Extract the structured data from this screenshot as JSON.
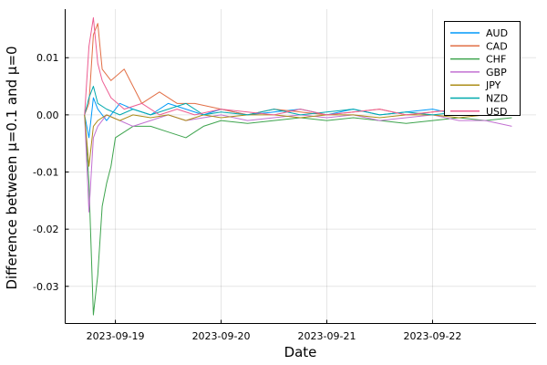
{
  "chart_data": {
    "type": "line",
    "title": "",
    "xlabel": "Date",
    "ylabel": "Difference between μ=0.1 and μ=0",
    "x_axis_type": "datetime",
    "xlim": [
      "2023-09-18T12:36:00",
      "2023-09-22T23:30:00"
    ],
    "ylim": [
      -0.0365,
      0.0185
    ],
    "x_ticks": [
      "2023-09-19",
      "2023-09-20",
      "2023-09-21",
      "2023-09-22"
    ],
    "y_ticks": [
      0.01,
      0.0,
      -0.01,
      -0.02,
      -0.03
    ],
    "y_tick_labels": [
      "0.01",
      "0.00",
      "-0.01",
      "-0.02",
      "-0.03"
    ],
    "grid": true,
    "legend_position": "top-right",
    "series": [
      {
        "name": "AUD",
        "color": "#009AFA",
        "x": [
          "2023-09-18T17:00",
          "2023-09-18T18:00",
          "2023-09-18T19:00",
          "2023-09-18T20:00",
          "2023-09-18T22:00",
          "2023-09-19T01:00",
          "2023-09-19T04:00",
          "2023-09-19T08:00",
          "2023-09-19T12:00",
          "2023-09-19T16:00",
          "2023-09-19T20:00",
          "2023-09-20T00:00",
          "2023-09-20T06:00",
          "2023-09-20T12:00",
          "2023-09-20T18:00",
          "2023-09-21T00:00",
          "2023-09-21T06:00",
          "2023-09-21T12:00",
          "2023-09-21T18:00",
          "2023-09-22T00:00",
          "2023-09-22T06:00",
          "2023-09-22T12:00",
          "2023-09-22T18:00"
        ],
        "y": [
          0.0,
          -0.004,
          0.003,
          0.001,
          -0.001,
          0.002,
          0.001,
          0.0,
          0.002,
          0.001,
          0.0,
          0.001,
          0.0,
          0.0005,
          0.001,
          0.0,
          0.001,
          0.0,
          0.0005,
          0.001,
          0.0,
          0.0005,
          0.0
        ]
      },
      {
        "name": "CAD",
        "color": "#E26F46",
        "x": [
          "2023-09-18T17:00",
          "2023-09-18T18:00",
          "2023-09-18T19:00",
          "2023-09-18T20:00",
          "2023-09-18T21:00",
          "2023-09-18T23:00",
          "2023-09-19T02:00",
          "2023-09-19T06:00",
          "2023-09-19T10:00",
          "2023-09-19T14:00",
          "2023-09-19T18:00",
          "2023-09-20T00:00",
          "2023-09-20T06:00",
          "2023-09-20T12:00",
          "2023-09-20T18:00",
          "2023-09-21T00:00",
          "2023-09-21T06:00",
          "2023-09-21T12:00",
          "2023-09-21T18:00",
          "2023-09-22T00:00",
          "2023-09-22T06:00",
          "2023-09-22T12:00",
          "2023-09-22T18:00"
        ],
        "y": [
          0.0,
          0.002,
          0.014,
          0.016,
          0.008,
          0.006,
          0.008,
          0.002,
          0.004,
          0.002,
          0.002,
          0.001,
          0.0,
          0.001,
          0.0005,
          0.0,
          0.0005,
          0.001,
          0.0,
          0.0005,
          0.001,
          0.0,
          0.0005
        ]
      },
      {
        "name": "CHF",
        "color": "#3EA44E",
        "x": [
          "2023-09-18T17:00",
          "2023-09-18T18:00",
          "2023-09-18T19:00",
          "2023-09-18T20:00",
          "2023-09-18T21:00",
          "2023-09-18T22:00",
          "2023-09-18T23:00",
          "2023-09-19T00:00",
          "2023-09-19T02:00",
          "2023-09-19T04:00",
          "2023-09-19T08:00",
          "2023-09-19T12:00",
          "2023-09-19T16:00",
          "2023-09-19T20:00",
          "2023-09-20T00:00",
          "2023-09-20T06:00",
          "2023-09-20T12:00",
          "2023-09-20T18:00",
          "2023-09-21T00:00",
          "2023-09-21T06:00",
          "2023-09-21T12:00",
          "2023-09-21T18:00",
          "2023-09-22T00:00",
          "2023-09-22T06:00",
          "2023-09-22T12:00",
          "2023-09-22T18:00"
        ],
        "y": [
          0.0,
          -0.012,
          -0.035,
          -0.028,
          -0.016,
          -0.012,
          -0.009,
          -0.004,
          -0.003,
          -0.002,
          -0.002,
          -0.003,
          -0.004,
          -0.002,
          -0.001,
          -0.0015,
          -0.001,
          -0.0005,
          -0.001,
          -0.0005,
          -0.001,
          -0.0015,
          -0.001,
          -0.0005,
          -0.001,
          -0.0005
        ]
      },
      {
        "name": "GBP",
        "color": "#C271D2",
        "x": [
          "2023-09-18T17:00",
          "2023-09-18T18:00",
          "2023-09-18T19:00",
          "2023-09-18T20:00",
          "2023-09-18T22:00",
          "2023-09-19T01:00",
          "2023-09-19T04:00",
          "2023-09-19T08:00",
          "2023-09-19T12:00",
          "2023-09-19T16:00",
          "2023-09-19T20:00",
          "2023-09-20T00:00",
          "2023-09-20T06:00",
          "2023-09-20T12:00",
          "2023-09-20T18:00",
          "2023-09-21T00:00",
          "2023-09-21T06:00",
          "2023-09-21T12:00",
          "2023-09-21T18:00",
          "2023-09-22T00:00",
          "2023-09-22T06:00",
          "2023-09-22T12:00",
          "2023-09-22T18:00"
        ],
        "y": [
          0.0,
          -0.017,
          -0.004,
          -0.002,
          0.0,
          -0.001,
          -0.002,
          -0.001,
          0.0,
          -0.001,
          -0.0005,
          0.0,
          -0.001,
          -0.0005,
          0.0,
          -0.0005,
          0.0,
          -0.001,
          -0.0005,
          0.0,
          -0.001,
          -0.001,
          -0.002
        ]
      },
      {
        "name": "JPY",
        "color": "#AC8D18",
        "x": [
          "2023-09-18T17:00",
          "2023-09-18T18:00",
          "2023-09-18T19:00",
          "2023-09-18T20:00",
          "2023-09-18T22:00",
          "2023-09-19T01:00",
          "2023-09-19T04:00",
          "2023-09-19T08:00",
          "2023-09-19T12:00",
          "2023-09-19T16:00",
          "2023-09-19T20:00",
          "2023-09-20T00:00",
          "2023-09-20T06:00",
          "2023-09-20T12:00",
          "2023-09-20T18:00",
          "2023-09-21T00:00",
          "2023-09-21T06:00",
          "2023-09-21T12:00",
          "2023-09-21T18:00",
          "2023-09-22T00:00",
          "2023-09-22T06:00",
          "2023-09-22T12:00",
          "2023-09-22T18:00"
        ],
        "y": [
          0.0,
          -0.009,
          -0.002,
          -0.001,
          0.0,
          -0.001,
          0.0,
          -0.0005,
          0.0,
          -0.001,
          0.0,
          -0.0005,
          0.0,
          0.0,
          -0.0005,
          0.0,
          0.0,
          -0.0005,
          0.0,
          0.0,
          -0.0005,
          0.0,
          0.0
        ]
      },
      {
        "name": "NZD",
        "color": "#00A9AD",
        "x": [
          "2023-09-18T17:00",
          "2023-09-18T18:00",
          "2023-09-18T19:00",
          "2023-09-18T20:00",
          "2023-09-18T22:00",
          "2023-09-19T01:00",
          "2023-09-19T04:00",
          "2023-09-19T08:00",
          "2023-09-19T12:00",
          "2023-09-19T16:00",
          "2023-09-19T20:00",
          "2023-09-20T00:00",
          "2023-09-20T06:00",
          "2023-09-20T12:00",
          "2023-09-20T18:00",
          "2023-09-21T00:00",
          "2023-09-21T06:00",
          "2023-09-21T12:00",
          "2023-09-21T18:00",
          "2023-09-22T00:00",
          "2023-09-22T06:00",
          "2023-09-22T12:00",
          "2023-09-22T18:00"
        ],
        "y": [
          0.0,
          0.003,
          0.005,
          0.002,
          0.001,
          0.0,
          0.001,
          0.0,
          0.001,
          0.002,
          0.0,
          0.0005,
          0.0,
          0.001,
          0.0,
          0.0005,
          0.001,
          0.0,
          0.0005,
          0.0,
          0.0005,
          0.0,
          0.0
        ]
      },
      {
        "name": "USD",
        "color": "#ED5D92",
        "x": [
          "2023-09-18T17:00",
          "2023-09-18T18:00",
          "2023-09-18T19:00",
          "2023-09-18T20:00",
          "2023-09-18T21:00",
          "2023-09-18T23:00",
          "2023-09-19T02:00",
          "2023-09-19T06:00",
          "2023-09-19T10:00",
          "2023-09-19T14:00",
          "2023-09-19T18:00",
          "2023-09-20T00:00",
          "2023-09-20T06:00",
          "2023-09-20T12:00",
          "2023-09-20T18:00",
          "2023-09-21T00:00",
          "2023-09-21T06:00",
          "2023-09-21T12:00",
          "2023-09-21T18:00",
          "2023-09-22T00:00",
          "2023-09-22T06:00",
          "2023-09-22T12:00",
          "2023-09-22T18:00"
        ],
        "y": [
          0.0,
          0.012,
          0.017,
          0.009,
          0.006,
          0.003,
          0.001,
          0.002,
          0.0,
          0.001,
          0.0,
          0.001,
          0.0005,
          0.0,
          0.001,
          0.0,
          0.0005,
          0.001,
          0.0,
          0.0005,
          0.001,
          0.0005,
          0.0
        ]
      }
    ]
  }
}
